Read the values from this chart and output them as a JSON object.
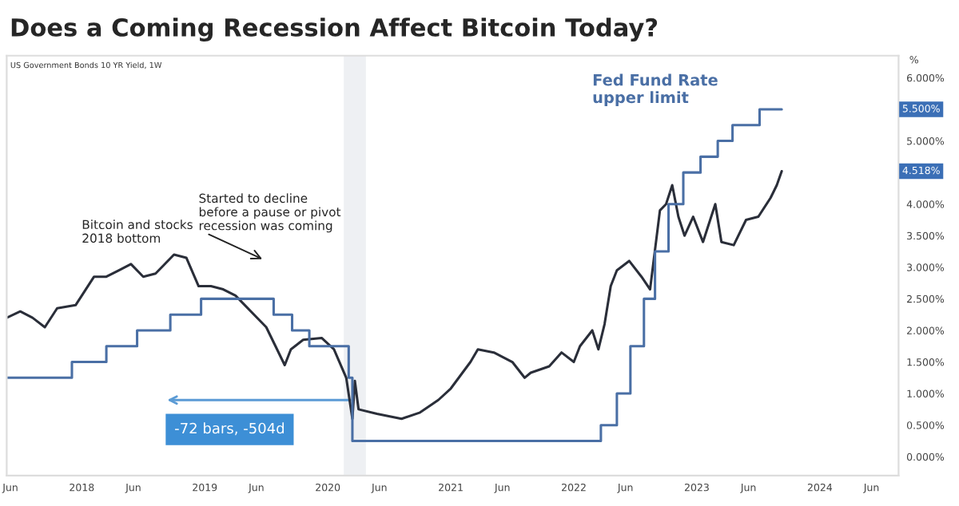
{
  "chart_data": {
    "type": "line",
    "title": "Does a Coming Recession Affect Bitcoin Today?",
    "ylabel": "%",
    "xlim": [
      2017.39,
      2024.64
    ],
    "xticks": [
      {
        "value": 2017.42,
        "label": "Jun"
      },
      {
        "value": 2018,
        "label": "2018"
      },
      {
        "value": 2018.42,
        "label": "Jun"
      },
      {
        "value": 2019,
        "label": "2019"
      },
      {
        "value": 2019.42,
        "label": "Jun"
      },
      {
        "value": 2020,
        "label": "2020"
      },
      {
        "value": 2020.42,
        "label": "Jun"
      },
      {
        "value": 2021,
        "label": "2021"
      },
      {
        "value": 2021.42,
        "label": "Jun"
      },
      {
        "value": 2022,
        "label": "2022"
      },
      {
        "value": 2022.42,
        "label": "Jun"
      },
      {
        "value": 2023,
        "label": "2023"
      },
      {
        "value": 2023.42,
        "label": "Jun"
      },
      {
        "value": 2024,
        "label": "2024"
      },
      {
        "value": 2024.42,
        "label": "Jun"
      }
    ],
    "ylim": [
      -0.3,
      6.35
    ],
    "yticks": [
      {
        "value": 0,
        "label": "0.000%"
      },
      {
        "value": 0.5,
        "label": "0.500%"
      },
      {
        "value": 1,
        "label": "1.000%"
      },
      {
        "value": 1.5,
        "label": "1.500%"
      },
      {
        "value": 2,
        "label": "2.000%"
      },
      {
        "value": 2.5,
        "label": "2.500%"
      },
      {
        "value": 3,
        "label": "3.000%"
      },
      {
        "value": 3.5,
        "label": "3.500%"
      },
      {
        "value": 4,
        "label": "4.000%"
      },
      {
        "value": 5,
        "label": "5.000%"
      },
      {
        "value": 6,
        "label": "6.000%"
      }
    ],
    "grid": false,
    "legend": false,
    "series": [
      {
        "color": "#2a2e39",
        "x": [
          2017.39,
          2017.5,
          2017.6,
          2017.7,
          2017.8,
          2017.95,
          2018.1,
          2018.2,
          2018.3,
          2018.4,
          2018.5,
          2018.6,
          2018.75,
          2018.85,
          2018.95,
          2019.05,
          2019.15,
          2019.25,
          2019.5,
          2019.65,
          2019.7,
          2019.8,
          2019.95,
          2020.05,
          2020.15,
          2020.2,
          2020.22,
          2020.25,
          2020.4,
          2020.6,
          2020.75,
          2020.9,
          2021.0,
          2021.16,
          2021.22,
          2021.35,
          2021.5,
          2021.6,
          2021.65,
          2021.8,
          2021.9,
          2022.0,
          2022.05,
          2022.15,
          2022.2,
          2022.25,
          2022.3,
          2022.35,
          2022.45,
          2022.55,
          2022.62,
          2022.7,
          2022.75,
          2022.8,
          2022.85,
          2022.9,
          2022.97,
          2023.05,
          2023.15,
          2023.2,
          2023.3,
          2023.4,
          2023.5,
          2023.6,
          2023.65,
          2023.69
        ],
        "values": [
          2.2,
          2.3,
          2.2,
          2.05,
          2.35,
          2.4,
          2.85,
          2.85,
          2.95,
          3.05,
          2.85,
          2.9,
          3.2,
          3.15,
          2.7,
          2.7,
          2.65,
          2.55,
          2.05,
          1.45,
          1.7,
          1.85,
          1.88,
          1.7,
          1.25,
          0.6,
          1.2,
          0.75,
          0.68,
          0.6,
          0.7,
          0.9,
          1.08,
          1.5,
          1.7,
          1.65,
          1.5,
          1.25,
          1.33,
          1.43,
          1.65,
          1.5,
          1.75,
          2.0,
          1.7,
          2.1,
          2.7,
          2.95,
          3.1,
          2.85,
          2.65,
          3.9,
          4.0,
          4.3,
          3.8,
          3.5,
          3.8,
          3.4,
          4.0,
          3.4,
          3.35,
          3.75,
          3.8,
          4.1,
          4.3,
          4.52
        ]
      },
      {
        "name": "Fed Fund Rate\nupper limit",
        "color": "#4a6fa5",
        "type": "step",
        "x": [
          2017.39,
          2017.92,
          2018.2,
          2018.45,
          2018.72,
          2018.97,
          2019.56,
          2019.71,
          2019.85,
          2020.17,
          2020.2,
          2022.22,
          2022.35,
          2022.46,
          2022.57,
          2022.66,
          2022.77,
          2022.89,
          2023.03,
          2023.17,
          2023.29,
          2023.51,
          2023.69
        ],
        "values": [
          1.25,
          1.5,
          1.75,
          2.0,
          2.25,
          2.5,
          2.25,
          2.0,
          1.75,
          1.25,
          0.25,
          0.5,
          1.0,
          1.75,
          2.5,
          3.25,
          4.0,
          4.5,
          4.75,
          5.0,
          5.25,
          5.5,
          5.5
        ]
      }
    ],
    "bands": [
      {
        "axis": "x",
        "from": 2020.13,
        "to": 2020.31,
        "color": "#eef0f3"
      }
    ],
    "annotations": [
      "US Government Bonds 10 YR Yield, 1W",
      "Bitcoin and stocks\n2018 bottom",
      "Started to decline\nbefore a pause or pivot\nrecession was coming",
      "-72 bars, -504d",
      "5.500%",
      "4.518%"
    ]
  }
}
